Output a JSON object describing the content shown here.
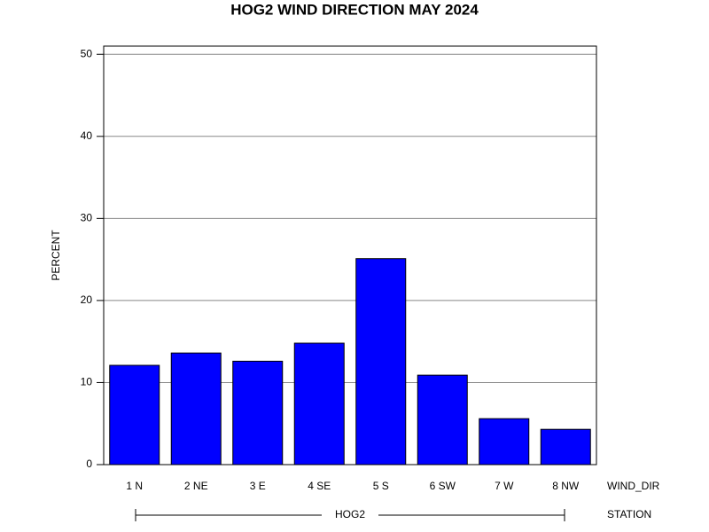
{
  "chart_data": {
    "type": "bar",
    "title": "HOG2 WIND DIRECTION MAY 2024",
    "y_label": "PERCENT",
    "x_label": "WIND_DIR",
    "group_axis_label": "STATION",
    "group": "HOG2",
    "categories": [
      "1 N",
      "2 NE",
      "3 E",
      "4 SE",
      "5 S",
      "6 SW",
      "7 W",
      "8 NW"
    ],
    "values": [
      12.1,
      13.6,
      12.6,
      14.8,
      25.1,
      10.9,
      5.6,
      4.3
    ],
    "color": "#0000ff",
    "ylim": [
      0,
      51
    ],
    "yticks": [
      0,
      10,
      20,
      30,
      40,
      50
    ],
    "grid": true
  }
}
